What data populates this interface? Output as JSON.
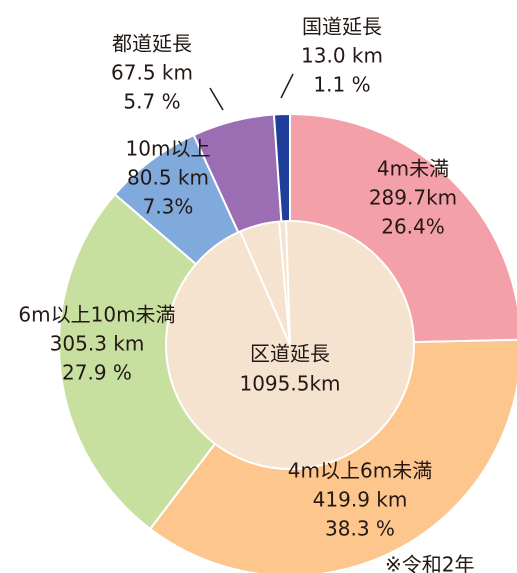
{
  "chart_data": {
    "type": "donut",
    "categories": [
      "4m未満",
      "4m以上6m未満",
      "6m以上10m未満",
      "10m以上",
      "都道延長",
      "国道延長"
    ],
    "values": [
      289.7,
      419.9,
      305.3,
      80.5,
      67.5,
      13.0
    ],
    "value_labels": [
      "289.7km",
      "419.9 km",
      "305.3 km",
      "80.5 km",
      "67.5 km",
      "13.0 km"
    ],
    "percents": [
      26.4,
      38.3,
      27.9,
      7.3,
      5.7,
      1.1
    ],
    "percent_labels": [
      "26.4%",
      "38.3 %",
      "27.9 %",
      "7.3%",
      "5.7 %",
      "1.1 %"
    ],
    "colors": [
      "#f4a0a8",
      "#fdc68c",
      "#c7e0a0",
      "#80aadc",
      "#9b6db3",
      "#1f3f9a"
    ],
    "center_title": "区道延長",
    "center_text": "1095.5km",
    "note": "※令和2年"
  }
}
